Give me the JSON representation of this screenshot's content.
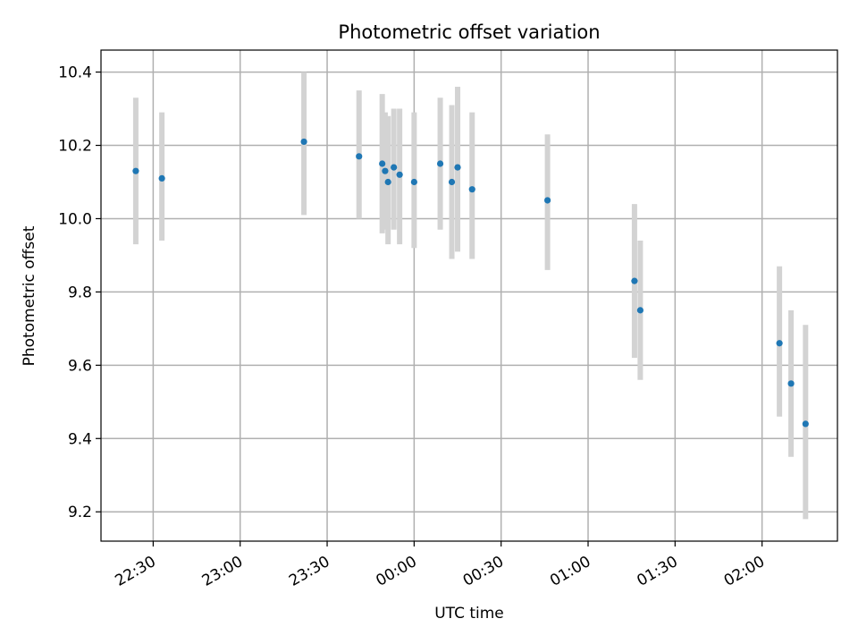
{
  "chart_data": {
    "type": "scatter",
    "title": "Photometric offset variation",
    "xlabel": "UTC time",
    "ylabel": "Photometric offset",
    "grid": true,
    "x_tick_labels": [
      "22:30",
      "23:00",
      "23:30",
      "00:00",
      "00:30",
      "01:00",
      "01:30",
      "02:00"
    ],
    "y_tick_labels": [
      "9.2",
      "9.4",
      "9.6",
      "9.8",
      "10.0",
      "10.2",
      "10.4"
    ],
    "x_ticks": [
      "22:30",
      "23:00",
      "23:30",
      "00:00",
      "00:30",
      "01:00",
      "01:30",
      "02:00"
    ],
    "y_ticks": [
      9.2,
      9.4,
      9.6,
      9.8,
      10.0,
      10.2,
      10.4
    ],
    "xlim": [
      "22:12",
      "02:26"
    ],
    "ylim": [
      9.12,
      10.46
    ],
    "colors": {
      "points": "#1f77b4",
      "errorbars": "#d3d3d3",
      "grid": "#b0b0b0"
    },
    "points": [
      {
        "x": "22:24",
        "y": 10.13,
        "ylow": 9.93,
        "yhigh": 10.33
      },
      {
        "x": "22:33",
        "y": 10.11,
        "ylow": 9.94,
        "yhigh": 10.29
      },
      {
        "x": "23:22",
        "y": 10.21,
        "ylow": 10.01,
        "yhigh": 10.4
      },
      {
        "x": "23:41",
        "y": 10.17,
        "ylow": 10.0,
        "yhigh": 10.35
      },
      {
        "x": "23:49",
        "y": 10.15,
        "ylow": 9.96,
        "yhigh": 10.34
      },
      {
        "x": "23:50",
        "y": 10.13,
        "ylow": 9.97,
        "yhigh": 10.29
      },
      {
        "x": "23:51",
        "y": 10.1,
        "ylow": 9.93,
        "yhigh": 10.28
      },
      {
        "x": "23:53",
        "y": 10.14,
        "ylow": 9.97,
        "yhigh": 10.3
      },
      {
        "x": "23:55",
        "y": 10.12,
        "ylow": 9.93,
        "yhigh": 10.3
      },
      {
        "x": "00:00",
        "y": 10.1,
        "ylow": 9.92,
        "yhigh": 10.29
      },
      {
        "x": "00:09",
        "y": 10.15,
        "ylow": 9.97,
        "yhigh": 10.33
      },
      {
        "x": "00:13",
        "y": 10.1,
        "ylow": 9.89,
        "yhigh": 10.31
      },
      {
        "x": "00:15",
        "y": 10.14,
        "ylow": 9.91,
        "yhigh": 10.36
      },
      {
        "x": "00:20",
        "y": 10.08,
        "ylow": 9.89,
        "yhigh": 10.29
      },
      {
        "x": "00:46",
        "y": 10.05,
        "ylow": 9.86,
        "yhigh": 10.23
      },
      {
        "x": "01:16",
        "y": 9.83,
        "ylow": 9.62,
        "yhigh": 10.04
      },
      {
        "x": "01:18",
        "y": 9.75,
        "ylow": 9.56,
        "yhigh": 9.94
      },
      {
        "x": "02:06",
        "y": 9.66,
        "ylow": 9.46,
        "yhigh": 9.87
      },
      {
        "x": "02:10",
        "y": 9.55,
        "ylow": 9.35,
        "yhigh": 9.75
      },
      {
        "x": "02:15",
        "y": 9.44,
        "ylow": 9.18,
        "yhigh": 9.71
      }
    ]
  }
}
